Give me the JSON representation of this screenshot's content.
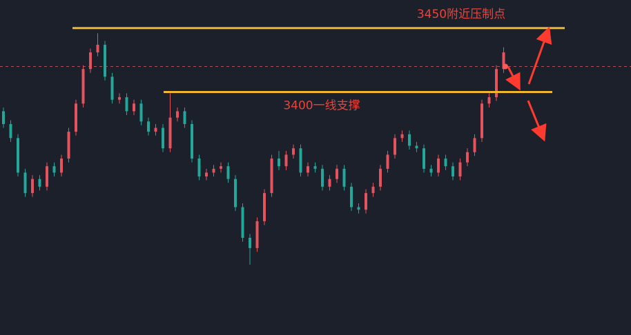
{
  "chart_data": {
    "type": "candlestick",
    "opens": [
      3385,
      3375,
      3364,
      3337,
      3321,
      3332,
      3326,
      3342,
      3337,
      3348,
      3369,
      3391,
      3418,
      3431,
      3437,
      3412,
      3394,
      3396,
      3385,
      3391,
      3377,
      3369,
      3372,
      3356,
      3380,
      3385,
      3375,
      3348,
      3334,
      3337,
      3340,
      3342,
      3332,
      3310,
      3286,
      3278,
      3299,
      3321,
      3348,
      3342,
      3351,
      3356,
      3337,
      3342,
      3340,
      3326,
      3332,
      3340,
      3326,
      3310,
      3308,
      3321,
      3326,
      3340,
      3351,
      3364,
      3367,
      3358,
      3356,
      3340,
      3337,
      3348,
      3342,
      3334,
      3345,
      3353,
      3364,
      3391,
      3396,
      3418
    ],
    "highs": [
      3388,
      3378,
      3367,
      3340,
      3335,
      3335,
      3345,
      3345,
      3351,
      3372,
      3394,
      3421,
      3434,
      3446,
      3440,
      3415,
      3399,
      3399,
      3394,
      3394,
      3380,
      3375,
      3375,
      3399,
      3388,
      3388,
      3378,
      3351,
      3340,
      3343,
      3345,
      3345,
      3335,
      3313,
      3289,
      3302,
      3324,
      3351,
      3354,
      3354,
      3359,
      3359,
      3345,
      3345,
      3343,
      3335,
      3343,
      3343,
      3329,
      3313,
      3324,
      3329,
      3343,
      3354,
      3367,
      3370,
      3370,
      3361,
      3359,
      3343,
      3351,
      3351,
      3345,
      3348,
      3356,
      3367,
      3394,
      3399,
      3421,
      3435
    ],
    "lows": [
      3372,
      3361,
      3334,
      3318,
      3318,
      3323,
      3323,
      3334,
      3334,
      3345,
      3366,
      3388,
      3415,
      3428,
      3409,
      3391,
      3391,
      3382,
      3382,
      3374,
      3366,
      3366,
      3353,
      3353,
      3377,
      3372,
      3345,
      3331,
      3331,
      3334,
      3337,
      3329,
      3307,
      3283,
      3265,
      3275,
      3296,
      3318,
      3339,
      3339,
      3348,
      3334,
      3334,
      3337,
      3323,
      3323,
      3329,
      3323,
      3307,
      3305,
      3305,
      3318,
      3323,
      3337,
      3348,
      3361,
      3355,
      3353,
      3337,
      3334,
      3334,
      3339,
      3331,
      3331,
      3342,
      3350,
      3361,
      3388,
      3393,
      3415
    ],
    "closes": [
      3375,
      3364,
      3337,
      3321,
      3332,
      3326,
      3342,
      3337,
      3348,
      3369,
      3391,
      3418,
      3431,
      3437,
      3412,
      3394,
      3396,
      3385,
      3391,
      3377,
      3369,
      3372,
      3356,
      3380,
      3385,
      3375,
      3348,
      3334,
      3337,
      3340,
      3342,
      3332,
      3310,
      3286,
      3278,
      3299,
      3321,
      3348,
      3342,
      3351,
      3356,
      3337,
      3342,
      3340,
      3326,
      3332,
      3340,
      3326,
      3310,
      3308,
      3321,
      3326,
      3340,
      3351,
      3364,
      3367,
      3358,
      3356,
      3340,
      3337,
      3348,
      3342,
      3334,
      3345,
      3353,
      3364,
      3391,
      3396,
      3418,
      3431
    ],
    "up_color": "#e5535f",
    "down_color": "#22a79a",
    "ylim": [
      3210,
      3472
    ],
    "price_line": 3420,
    "levels": [
      {
        "value": 3450,
        "label": "3450附近压制点",
        "color": "#f0b72f"
      },
      {
        "value": 3400,
        "label": "3400一线支撑",
        "color": "#f0b72f"
      }
    ]
  }
}
